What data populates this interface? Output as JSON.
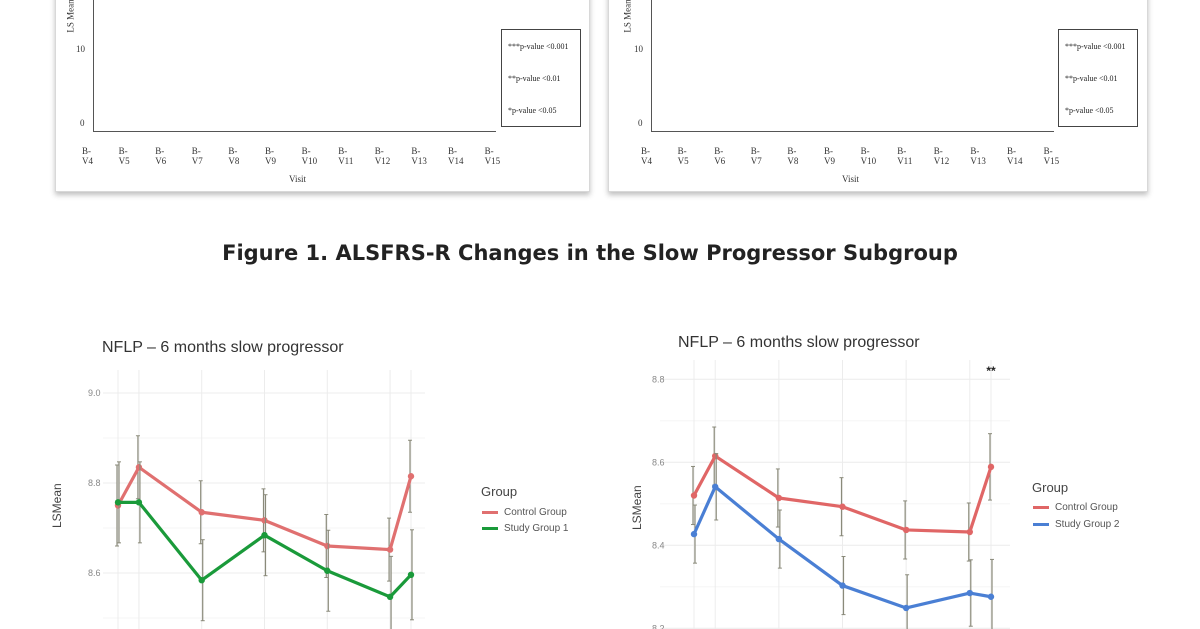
{
  "top_panels": [
    {
      "ylabel": "LS Mean",
      "y_ticks": [
        "10",
        "0"
      ],
      "x_ticks": [
        "B-V4",
        "B-V5",
        "B-V6",
        "B-V7",
        "B-V8",
        "B-V9",
        "B-V10",
        "B-V11",
        "B-V12",
        "B-V13",
        "B-V14",
        "B-V15"
      ],
      "xlabel": "Visit",
      "legend": [
        "***p-value <0.001",
        "**p-value <0.01",
        "*p-value <0.05"
      ]
    },
    {
      "ylabel": "LS Mean",
      "y_ticks": [
        "10",
        "0"
      ],
      "x_ticks": [
        "B-V4",
        "B-V5",
        "B-V6",
        "B-V7",
        "B-V8",
        "B-V9",
        "B-V10",
        "B-V11",
        "B-V12",
        "B-V13",
        "B-V14",
        "B-V15"
      ],
      "xlabel": "Visit",
      "legend": [
        "***p-value <0.001",
        "**p-value <0.01",
        "*p-value <0.05"
      ]
    }
  ],
  "figure_title": "Figure 1. ALSFRS-R Changes in the Slow Progressor Subgroup",
  "chart_data": [
    {
      "type": "line",
      "title": "NFLP – 6 months slow progressor",
      "ylabel": "LSMean",
      "xlabel": "",
      "y_ticks": [
        "9.0",
        "8.8",
        "8.6"
      ],
      "y_tick_values": [
        9.0,
        8.8,
        8.6
      ],
      "grid": true,
      "legend_title": "Group",
      "legend_position": "right",
      "x": [
        0,
        1,
        4,
        7,
        10,
        13,
        14
      ],
      "series": [
        {
          "name": "Control Group",
          "color": "#e07070",
          "values": [
            8.75,
            8.835,
            8.735,
            8.717,
            8.66,
            8.652,
            8.815
          ],
          "error": [
            0.09,
            0.07,
            0.07,
            0.07,
            0.07,
            0.07,
            0.08
          ]
        },
        {
          "name": "Study Group 1",
          "color": "#1a9a3a",
          "values": [
            8.757,
            8.757,
            8.584,
            8.684,
            8.605,
            8.547,
            8.596
          ],
          "error": [
            0.09,
            0.09,
            0.09,
            0.09,
            0.09,
            0.09,
            0.1
          ]
        }
      ],
      "annotations": []
    },
    {
      "type": "line",
      "title": "NFLP – 6 months slow progressor",
      "ylabel": "LSMean",
      "xlabel": "",
      "y_ticks": [
        "8.8",
        "8.6",
        "8.4",
        "8.2"
      ],
      "y_tick_values": [
        8.8,
        8.6,
        8.4,
        8.2
      ],
      "grid": true,
      "legend_title": "Group",
      "legend_position": "right",
      "x": [
        0,
        1,
        4,
        7,
        10,
        13,
        14
      ],
      "series": [
        {
          "name": "Control Group",
          "color": "#e06666",
          "values": [
            8.52,
            8.615,
            8.514,
            8.493,
            8.437,
            8.432,
            8.589
          ],
          "error": [
            0.07,
            0.07,
            0.07,
            0.07,
            0.07,
            0.07,
            0.08
          ]
        },
        {
          "name": "Study Group 2",
          "color": "#4a7fd4",
          "values": [
            8.427,
            8.541,
            8.415,
            8.303,
            8.249,
            8.285,
            8.276
          ],
          "error": [
            0.07,
            0.08,
            0.07,
            0.07,
            0.08,
            0.08,
            0.09
          ]
        }
      ],
      "annotations": [
        {
          "text": "**",
          "x": 14
        }
      ]
    }
  ]
}
